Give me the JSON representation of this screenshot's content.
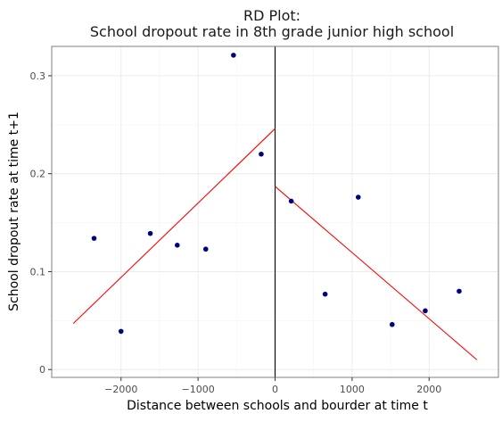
{
  "chart_data": {
    "type": "scatter",
    "title_line1": "RD Plot:",
    "title_line2": "School dropout rate in 8th grade junior high school",
    "xlabel": "Distance between schools and bourder at time t",
    "ylabel": "School dropout rate at time t+1",
    "xlim": [
      -2900,
      2900
    ],
    "ylim": [
      -0.008,
      0.33
    ],
    "x_ticks": [
      -2000,
      -1000,
      0,
      1000,
      2000
    ],
    "x_tick_labels": [
      "−2000",
      "−1000",
      "0",
      "1000",
      "2000"
    ],
    "y_ticks": [
      0,
      0.1,
      0.2,
      0.3
    ],
    "y_tick_labels": [
      "0",
      "0.1",
      "0.2",
      "0.3"
    ],
    "cutoff": 0,
    "grid": true,
    "points": [
      {
        "x": -2350,
        "y": 0.134
      },
      {
        "x": -2000,
        "y": 0.039
      },
      {
        "x": -1620,
        "y": 0.139
      },
      {
        "x": -1270,
        "y": 0.127
      },
      {
        "x": -900,
        "y": 0.123
      },
      {
        "x": -540,
        "y": 0.321
      },
      {
        "x": -180,
        "y": 0.22
      },
      {
        "x": 210,
        "y": 0.172
      },
      {
        "x": 650,
        "y": 0.077
      },
      {
        "x": 1080,
        "y": 0.176
      },
      {
        "x": 1520,
        "y": 0.046
      },
      {
        "x": 1950,
        "y": 0.06
      },
      {
        "x": 2390,
        "y": 0.08
      }
    ],
    "fit_lines": [
      {
        "x": [
          -2620,
          0
        ],
        "y": [
          0.047,
          0.246
        ]
      },
      {
        "x": [
          0,
          2620
        ],
        "y": [
          0.187,
          0.01
        ]
      }
    ],
    "colors": {
      "points": "#00007f",
      "fit": "#ff0000",
      "cutoff": "#000000",
      "grid": "#ebebeb",
      "panel_border": "#7f7f7f"
    }
  }
}
